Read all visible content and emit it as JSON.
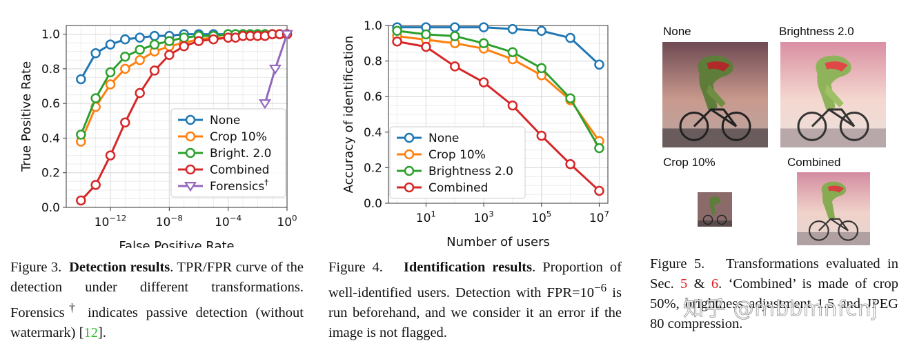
{
  "chart_data": [
    {
      "type": "line",
      "title": "",
      "xlabel": "False Positive Rate",
      "ylabel": "True Positive Rate",
      "xscale": "log",
      "xlim_exp": [
        -15,
        0
      ],
      "ylim": [
        0,
        1.05
      ],
      "xticks": [
        {
          "exp": -12,
          "label": "10",
          "sup": "−12"
        },
        {
          "exp": -8,
          "label": "10",
          "sup": "−8"
        },
        {
          "exp": -4,
          "label": "10",
          "sup": "−4"
        },
        {
          "exp": 0,
          "label": "10",
          "sup": "0"
        }
      ],
      "yticks": [
        0.0,
        0.2,
        0.4,
        0.6,
        0.8,
        1.0
      ],
      "ytick_labels": [
        "0.0",
        "0.2",
        "0.4",
        "0.6",
        "0.8",
        "1.0"
      ],
      "grid": true,
      "legend_position": "bottom-right",
      "series": [
        {
          "name": "None",
          "color": "#1f77b4",
          "marker": "circle",
          "x_exp": [
            -14,
            -13,
            -12,
            -11,
            -10,
            -9,
            -8,
            -7,
            -6,
            -5,
            -4,
            -3.5,
            -3,
            -2.5,
            -2,
            -1.5,
            -1,
            -0.5,
            0
          ],
          "y": [
            0.74,
            0.89,
            0.94,
            0.97,
            0.98,
            0.99,
            0.99,
            1.0,
            1.0,
            1.0,
            1.0,
            1.0,
            1.0,
            1.0,
            1.0,
            1.0,
            1.0,
            1.0,
            1.0
          ]
        },
        {
          "name": "Crop 10%",
          "color": "#ff7f0e",
          "marker": "circle",
          "x_exp": [
            -14,
            -13,
            -12,
            -11,
            -10,
            -9,
            -8,
            -7,
            -6,
            -5,
            -4,
            -3.5,
            -3,
            -2.5,
            -2,
            -1.5,
            -1,
            -0.5,
            0
          ],
          "y": [
            0.38,
            0.58,
            0.71,
            0.8,
            0.85,
            0.9,
            0.93,
            0.95,
            0.97,
            0.98,
            0.98,
            0.99,
            0.99,
            0.99,
            1.0,
            1.0,
            1.0,
            1.0,
            1.0
          ]
        },
        {
          "name": "Bright. 2.0",
          "color": "#2ca02c",
          "marker": "circle",
          "x_exp": [
            -14,
            -13,
            -12,
            -11,
            -10,
            -9,
            -8,
            -7,
            -6,
            -5,
            -4,
            -3.5,
            -3,
            -2.5,
            -2,
            -1.5,
            -1,
            -0.5,
            0
          ],
          "y": [
            0.42,
            0.63,
            0.78,
            0.87,
            0.91,
            0.94,
            0.96,
            0.98,
            0.99,
            0.99,
            1.0,
            1.0,
            1.0,
            1.0,
            1.0,
            1.0,
            1.0,
            1.0,
            1.0
          ]
        },
        {
          "name": "Combined",
          "color": "#d62728",
          "marker": "circle",
          "x_exp": [
            -14,
            -13,
            -12,
            -11,
            -10,
            -9,
            -8,
            -7,
            -6,
            -5,
            -4,
            -3.5,
            -3,
            -2.5,
            -2,
            -1.5,
            -1,
            -0.5,
            0
          ],
          "y": [
            0.04,
            0.13,
            0.3,
            0.49,
            0.66,
            0.79,
            0.88,
            0.93,
            0.96,
            0.97,
            0.98,
            0.98,
            0.99,
            0.99,
            0.99,
            0.99,
            1.0,
            1.0,
            1.0
          ]
        },
        {
          "name": "Forensics",
          "name_sup": "†",
          "color": "#9467bd",
          "marker": "triangle-down",
          "x_exp": [
            -1.5,
            -0.8,
            0
          ],
          "y": [
            0.6,
            0.8,
            1.0
          ]
        }
      ]
    },
    {
      "type": "line",
      "title": "",
      "xlabel": "Number of users",
      "ylabel": "Accuracy of identification",
      "xscale": "log",
      "xlim_exp": [
        -0.3,
        7.3
      ],
      "ylim": [
        0,
        1.0
      ],
      "xticks": [
        {
          "exp": 1,
          "label": "10",
          "sup": "1"
        },
        {
          "exp": 3,
          "label": "10",
          "sup": "3"
        },
        {
          "exp": 5,
          "label": "10",
          "sup": "5"
        },
        {
          "exp": 7,
          "label": "10",
          "sup": "7"
        }
      ],
      "yticks": [
        0.0,
        0.2,
        0.4,
        0.6,
        0.8,
        1.0
      ],
      "ytick_labels": [
        "0.0",
        "0.2",
        "0.4",
        "0.6",
        "0.8",
        "1.0"
      ],
      "grid": true,
      "legend_position": "bottom-left",
      "series": [
        {
          "name": "None",
          "color": "#1f77b4",
          "marker": "circle",
          "x_exp": [
            0,
            1,
            2,
            3,
            4,
            5,
            6,
            7
          ],
          "y": [
            0.99,
            0.99,
            0.99,
            0.99,
            0.98,
            0.97,
            0.93,
            0.78
          ]
        },
        {
          "name": "Crop 10%",
          "color": "#ff7f0e",
          "marker": "circle",
          "x_exp": [
            0,
            1,
            2,
            3,
            4,
            5,
            6,
            7
          ],
          "y": [
            0.94,
            0.92,
            0.9,
            0.87,
            0.81,
            0.72,
            0.58,
            0.35
          ]
        },
        {
          "name": "Brightness 2.0",
          "color": "#2ca02c",
          "marker": "circle",
          "x_exp": [
            0,
            1,
            2,
            3,
            4,
            5,
            6,
            7
          ],
          "y": [
            0.97,
            0.95,
            0.94,
            0.9,
            0.85,
            0.76,
            0.59,
            0.31
          ]
        },
        {
          "name": "Combined",
          "color": "#d62728",
          "marker": "circle",
          "x_exp": [
            0,
            1,
            2,
            3,
            4,
            5,
            6,
            7
          ],
          "y": [
            0.91,
            0.88,
            0.77,
            0.68,
            0.55,
            0.38,
            0.22,
            0.07
          ]
        }
      ]
    }
  ],
  "figure3": {
    "label": "Figure 3.",
    "bold": "Detection results",
    "text1": ". TPR/FPR curve of the detection under different transforma­tions. Forensics",
    "sup": "†",
    "text2": " indicates passive detection (without watermark) [",
    "ref": "12",
    "text3": "]."
  },
  "figure4": {
    "label": "Figure 4.",
    "bold": "Identification results",
    "text1": ". Propor­tion of well-identified users. Detection with FPR=10",
    "sup": "−6",
    "text2": " is run beforehand, and we con­sider it an error if the image is not flagged."
  },
  "figure5": {
    "label": "Figure 5.",
    "text1": "Transformations evaluated in Sec. ",
    "ref1": "5",
    "amp": " & ",
    "ref2": "6",
    "text2": ". ‘Combined’ is made of crop 50%, brightness adjustment 1.5 and JPEG 80 compression.",
    "thumbs": [
      {
        "label": "None"
      },
      {
        "label": "Brightness 2.0"
      },
      {
        "label": "Crop 10%"
      },
      {
        "label": "Combined"
      }
    ]
  },
  "watermark": "知乎 @mbbmnfcnj"
}
